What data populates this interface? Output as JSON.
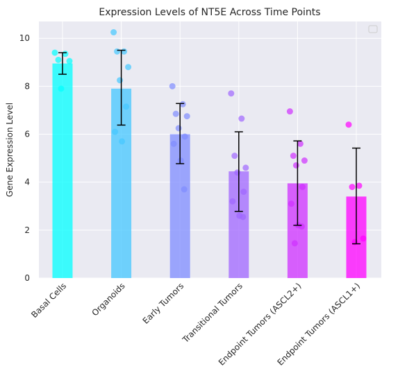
{
  "chart_data": {
    "type": "bar",
    "title": "Expression Levels of NT5E Across Time Points",
    "xlabel": "",
    "ylabel": "Gene Expression Level",
    "ylim": [
      0,
      10.7
    ],
    "yticks": [
      0,
      2,
      4,
      6,
      8,
      10
    ],
    "grid": true,
    "legend": {
      "placement": "top-right",
      "entries": []
    },
    "categories": [
      "Basal Cells",
      "Organoids",
      "Early Tumors",
      "Transitional Tumors",
      "Endpoint Tumors (ASCL2+)",
      "Endpoint Tumors (ASCL1+)"
    ],
    "colors": [
      "#00ffff",
      "#44c7ff",
      "#7f8cff",
      "#a066ff",
      "#cf2fff",
      "#ff00ff"
    ],
    "values": [
      8.95,
      7.9,
      6.0,
      4.45,
      3.95,
      3.4
    ],
    "error_low": [
      8.5,
      6.38,
      4.77,
      2.78,
      2.2,
      1.43
    ],
    "error_high": [
      9.4,
      9.5,
      7.28,
      6.1,
      5.72,
      5.42
    ],
    "points": [
      [
        9.4,
        9.35,
        9.1,
        9.05,
        7.9
      ],
      [
        10.25,
        9.45,
        9.45,
        8.8,
        8.25,
        7.15,
        6.1,
        5.7
      ],
      [
        8.0,
        7.25,
        6.85,
        6.75,
        6.25,
        5.9,
        5.6,
        4.9,
        3.7
      ],
      [
        7.7,
        6.65,
        5.1,
        4.6,
        4.4,
        3.6,
        3.2,
        2.6,
        2.55
      ],
      [
        6.95,
        5.6,
        5.1,
        4.9,
        4.7,
        3.8,
        3.1,
        2.2,
        2.15,
        1.45
      ],
      [
        6.4,
        3.85,
        3.8,
        1.65,
        1.5
      ]
    ]
  }
}
